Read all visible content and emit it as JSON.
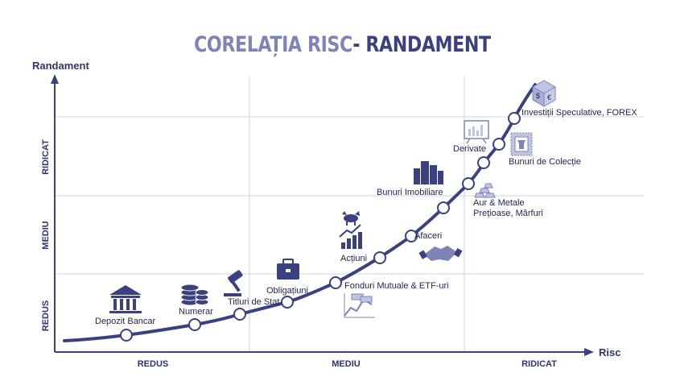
{
  "title": {
    "part1": "CORELAȚIA RISC",
    "part2": "- RANDAMENT"
  },
  "axes": {
    "y_title": "Randament",
    "x_title": "Risc",
    "x_levels": [
      "REDUS",
      "MEDIU",
      "RIDICAT"
    ],
    "y_levels": [
      "REDUS",
      "MEDIU",
      "RIDICAT"
    ]
  },
  "points": [
    {
      "label": "Depozit Bancar",
      "icon": "bank-icon"
    },
    {
      "label": "Numerar",
      "icon": "coins-icon"
    },
    {
      "label": "Titluri de Stat",
      "icon": "gavel-icon"
    },
    {
      "label": "Obligațiuni",
      "icon": "briefcase-icon"
    },
    {
      "label": "Fonduri Mutuale & ETF-uri",
      "icon": "chart-money-icon"
    },
    {
      "label": "Acțiuni",
      "icon": "bull-chart-icon"
    },
    {
      "label": "Afaceri",
      "icon": "handshake-icon"
    },
    {
      "label": "Bunuri Imobiliare",
      "icon": "buildings-icon"
    },
    {
      "label": "Aur & Metale",
      "label2": "Prețioase, Mărfuri",
      "icon": "gold-bars-icon"
    },
    {
      "label": "Derivate",
      "icon": "presentation-board-icon"
    },
    {
      "label": "Bunuri de Colecție",
      "icon": "stamp-icon"
    },
    {
      "label": "Investiții Speculative, FOREX",
      "icon": "currency-dice-icon"
    }
  ],
  "colors": {
    "primary": "#3b4180",
    "light": "#7f84b6",
    "grid": "#cfd2e6",
    "icon_fill": "#bfc4e2"
  }
}
